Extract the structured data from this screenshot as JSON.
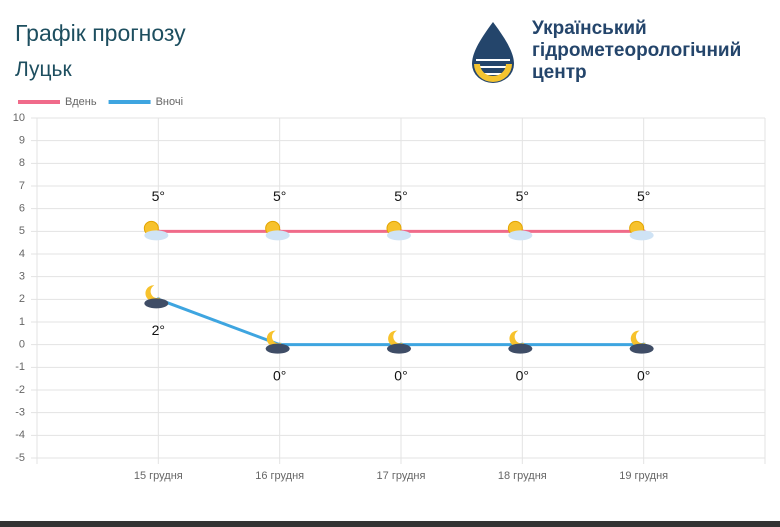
{
  "org": "Український гідрометеорологічний центр",
  "chart_data": {
    "type": "line",
    "title": "Графік прогнозу",
    "subtitle": "Луцьк",
    "categories": [
      "15 грудня",
      "16 грудня",
      "17 грудня",
      "18 грудня",
      "19 грудня"
    ],
    "series": [
      {
        "name": "Вдень",
        "color": "#f06b8a",
        "values": [
          5,
          5,
          5,
          5,
          5
        ],
        "value_labels": [
          "5°",
          "5°",
          "5°",
          "5°",
          "5°"
        ]
      },
      {
        "name": "Вночі",
        "color": "#3ea5e0",
        "values": [
          2,
          0,
          0,
          0,
          0
        ],
        "value_labels": [
          "2°",
          "0°",
          "0°",
          "0°",
          "0°"
        ]
      }
    ],
    "ylim": [
      -5,
      10
    ],
    "yticks": [
      10,
      9,
      8,
      7,
      6,
      5,
      4,
      3,
      2,
      1,
      0,
      -1,
      -2,
      -3,
      -4,
      -5
    ],
    "grid": true
  }
}
